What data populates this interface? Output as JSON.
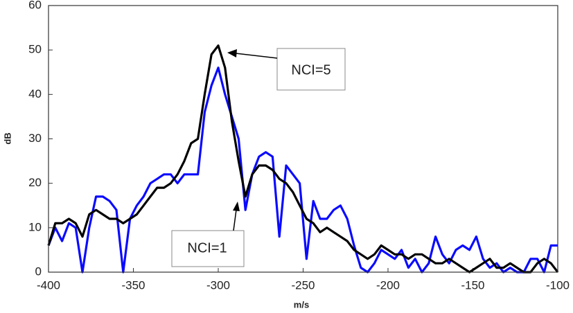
{
  "chart_data": {
    "type": "line",
    "xlabel": "m/s",
    "ylabel": "dB",
    "x": [
      -400,
      -396,
      -392,
      -388,
      -384,
      -380,
      -376,
      -372,
      -368,
      -364,
      -360,
      -356,
      -352,
      -348,
      -344,
      -340,
      -336,
      -332,
      -328,
      -324,
      -320,
      -316,
      -312,
      -308,
      -304,
      -300,
      -296,
      -292,
      -288,
      -284,
      -280,
      -276,
      -272,
      -268,
      -264,
      -260,
      -256,
      -252,
      -248,
      -244,
      -240,
      -236,
      -232,
      -228,
      -224,
      -220,
      -216,
      -212,
      -208,
      -204,
      -200,
      -196,
      -192,
      -188,
      -184,
      -180,
      -176,
      -172,
      -168,
      -164,
      -160,
      -156,
      -152,
      -148,
      -144,
      -140,
      -136,
      -132,
      -128,
      -124,
      -120,
      -116,
      -112,
      -108,
      -104,
      -100
    ],
    "series": [
      {
        "name": "NCI=1",
        "color": "#0a0aff",
        "values": [
          6,
          10,
          7,
          11,
          10,
          0,
          10,
          17,
          17,
          16,
          14,
          0,
          12,
          15,
          17,
          20,
          21,
          22,
          22,
          20,
          22,
          22,
          22,
          36,
          42,
          46,
          40,
          35,
          30,
          14,
          22,
          26,
          27,
          26,
          8,
          24,
          22,
          20,
          3,
          16,
          12,
          12,
          14,
          15,
          12,
          6,
          1,
          0,
          2,
          5,
          4,
          3,
          5,
          1,
          3,
          0,
          2,
          8,
          4,
          2,
          5,
          6,
          5,
          8,
          3,
          1,
          2,
          0,
          1,
          0,
          0,
          3,
          3,
          0,
          6,
          6
        ]
      },
      {
        "name": "NCI=5",
        "color": "#000000",
        "values": [
          6,
          11,
          11,
          12,
          11,
          8,
          13,
          14,
          13,
          12,
          12,
          11,
          12,
          13,
          15,
          17,
          19,
          19,
          20,
          22,
          25,
          29,
          30,
          40,
          49,
          51,
          46,
          34,
          25,
          17,
          22,
          24,
          24,
          23,
          21,
          20,
          18,
          15,
          12,
          11,
          9,
          10,
          9,
          8,
          7,
          5,
          4,
          3,
          4,
          6,
          5,
          4,
          4,
          3,
          4,
          4,
          3,
          2,
          2,
          3,
          2,
          1,
          0,
          1,
          2,
          3,
          1,
          1,
          2,
          1,
          0,
          0,
          2,
          3,
          2,
          0
        ]
      }
    ],
    "xlim": [
      -400,
      -100
    ],
    "xticks": [
      -400,
      -350,
      -300,
      -250,
      -200,
      -150,
      -100
    ],
    "ylim": [
      0,
      60
    ],
    "yticks": [
      0,
      10,
      20,
      30,
      40,
      50,
      60
    ],
    "grid": false
  }
}
